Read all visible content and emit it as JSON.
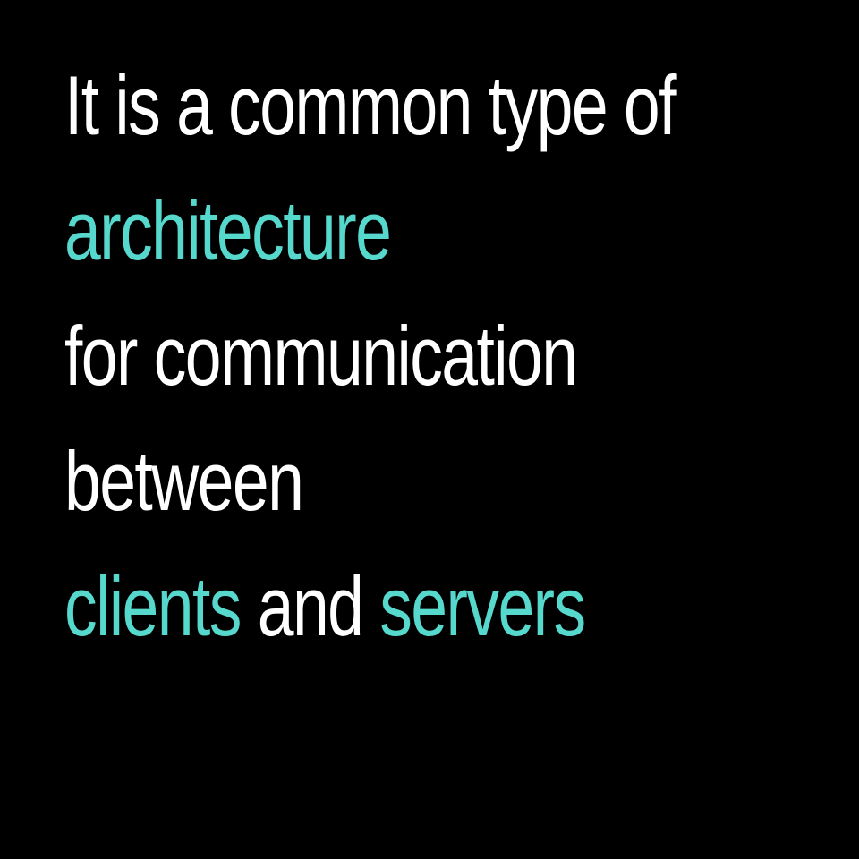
{
  "colors": {
    "background": "#000000",
    "text": "#ffffff",
    "accent": "#56d8cc"
  },
  "lines": {
    "line1": "It is a common type of",
    "line2": "architecture",
    "line3": "for communication",
    "line4": "between",
    "line5_part1": "clients",
    "line5_part2": " and ",
    "line5_part3": "servers"
  }
}
